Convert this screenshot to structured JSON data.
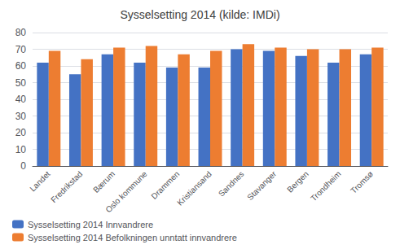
{
  "chart_data": {
    "type": "bar",
    "title": "Sysselsetting 2014 (kilde: IMDi)",
    "categories": [
      "Landet",
      "Fredrikstad",
      "Bærum",
      "Oslo kommune",
      "Drammen",
      "Kristiansand",
      "Sandnes",
      "Stavanger",
      "Bergen",
      "Trondheim",
      "Tromsø"
    ],
    "series": [
      {
        "name": "Sysselsetting 2014 Innvandrere",
        "color": "#4472C4",
        "values": [
          62,
          55,
          67,
          62,
          59,
          59,
          70,
          69,
          66,
          62,
          67
        ]
      },
      {
        "name": "Sysselsetting 2014 Befolkningen unntatt innvandrere",
        "color": "#ED7D31",
        "values": [
          69,
          64,
          71,
          72,
          67,
          69,
          73,
          71,
          70,
          70,
          71
        ]
      }
    ],
    "ylim": [
      0,
      80
    ],
    "yticks": [
      0,
      10,
      20,
      30,
      40,
      50,
      60,
      70,
      80
    ],
    "grid": true,
    "legend": "lower left"
  }
}
